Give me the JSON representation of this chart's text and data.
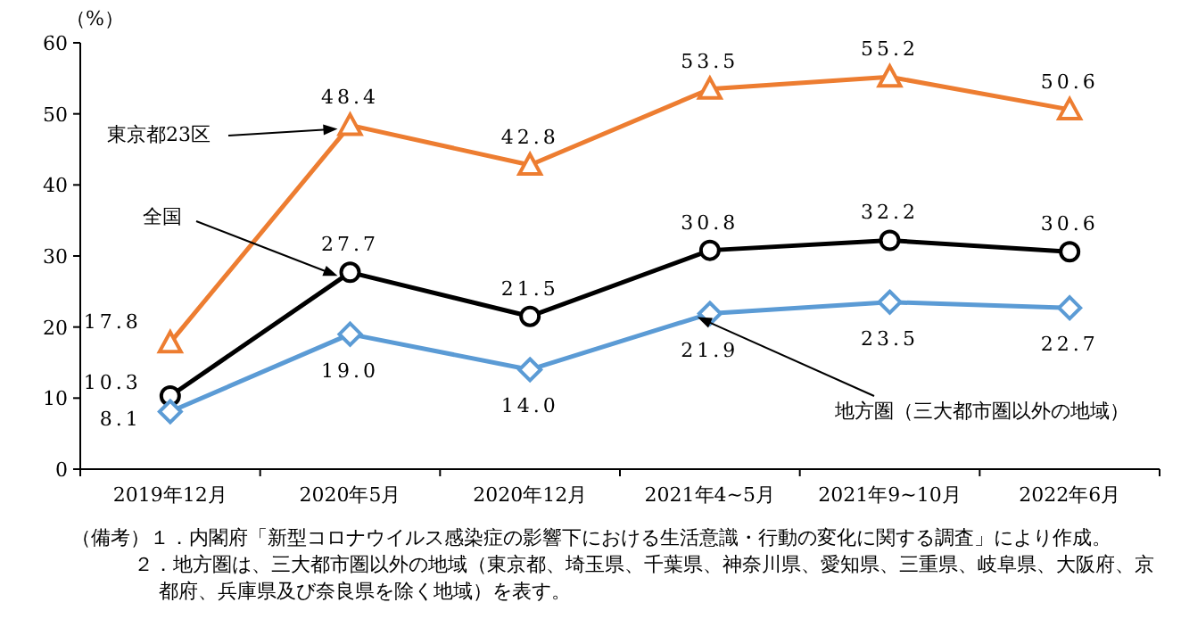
{
  "chart_data": {
    "type": "line",
    "ylabel": "（%）",
    "categories": [
      "2019年12月",
      "2020年5月",
      "2020年12月",
      "2021年4~5月",
      "2021年9~10月",
      "2022年6月"
    ],
    "ylim": [
      0,
      60
    ],
    "yticks": [
      0,
      10,
      20,
      30,
      40,
      50,
      60
    ],
    "grid": false,
    "line_style": "solid",
    "series": [
      {
        "name": "東京都23区",
        "color": "#ed7d31",
        "marker": "triangle",
        "values": [
          17.8,
          48.4,
          42.8,
          53.5,
          55.2,
          50.6
        ],
        "value_labels": [
          "17.8",
          "48.4",
          "42.8",
          "53.5",
          "55.2",
          "50.6"
        ]
      },
      {
        "name": "全国",
        "color": "#000000",
        "marker": "circle",
        "values": [
          10.3,
          27.7,
          21.5,
          30.8,
          32.2,
          30.6
        ],
        "value_labels": [
          "10.3",
          "27.7",
          "21.5",
          "30.8",
          "32.2",
          "30.6"
        ]
      },
      {
        "name": "地方圏（三大都市圏以外の地域）",
        "color": "#5b9bd5",
        "marker": "diamond",
        "values": [
          8.1,
          19.0,
          14.0,
          21.9,
          23.5,
          22.7
        ],
        "value_labels": [
          "8.1",
          "19.0",
          "14.0",
          "21.9",
          "23.5",
          "22.7"
        ]
      }
    ],
    "annotations": [
      "（備考）１．内閣府「新型コロナウイルス感染症の影響下における生活意識・行動の変化に関する調査」により作成。",
      "２．地方圏は、三大都市圏以外の地域（東京都、埼玉県、千葉県、神奈川県、愛知県、三重県、岐阜県、大阪府、京都府、兵庫県及び奈良県を除く地域）を表す。"
    ]
  }
}
